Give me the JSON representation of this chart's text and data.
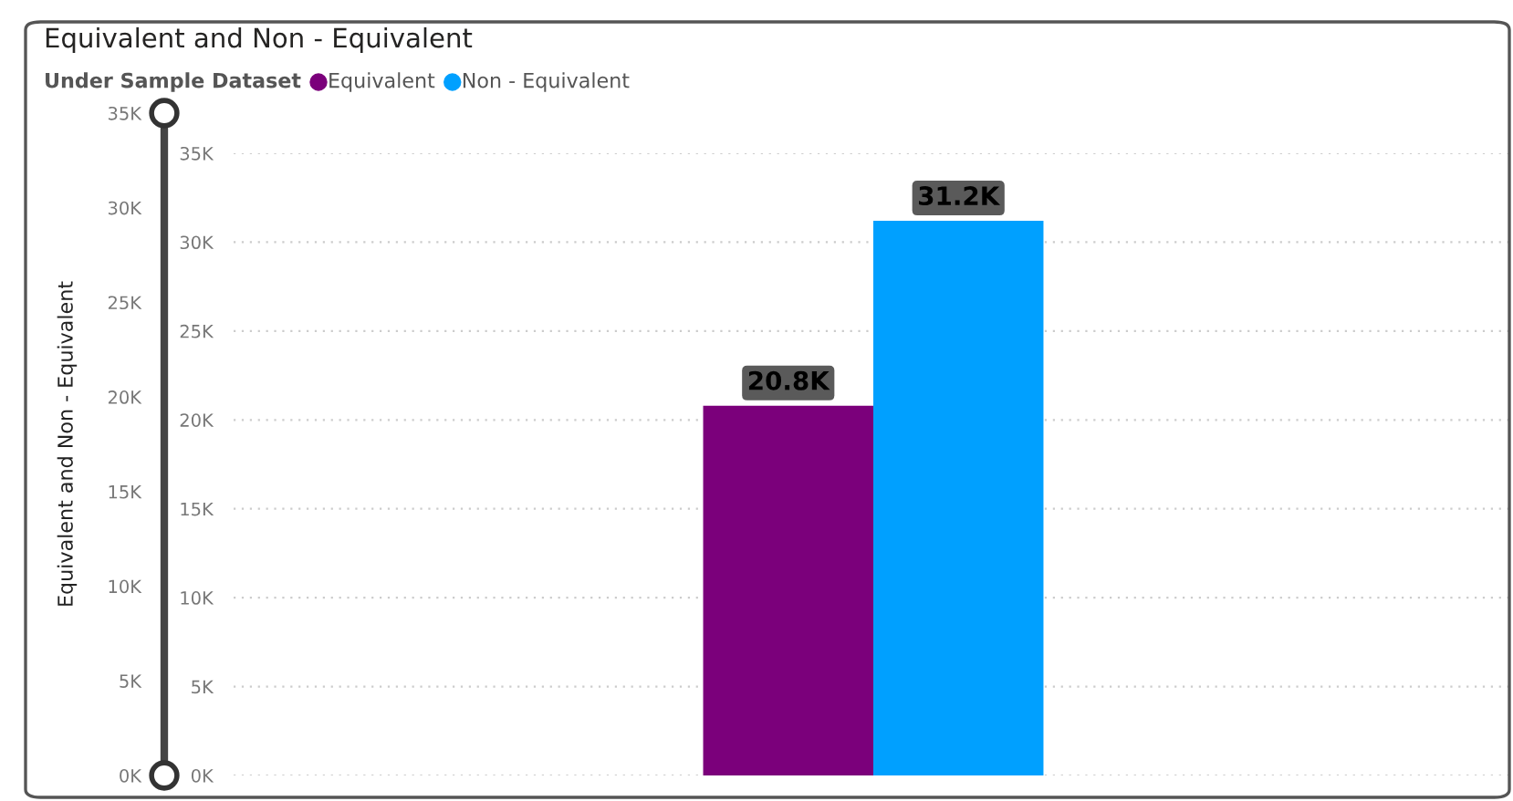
{
  "chart_data": {
    "type": "bar",
    "title": "Equivalent and Non - Equivalent",
    "y2label": "Equivalent and Non - Equivalent",
    "legend_title": "Under Sample Dataset",
    "categories": [
      null
    ],
    "series": [
      {
        "name": "Equivalent",
        "color": "#7b007b",
        "values": [
          20800
        ],
        "value_labels": [
          "20.8K"
        ]
      },
      {
        "name": "Non - Equivalent",
        "color": "#00a0ff",
        "values": [
          31200
        ],
        "value_labels": [
          "31.2K"
        ]
      }
    ],
    "ylim": [
      0,
      35000
    ],
    "yticks": [
      {
        "value": 0,
        "label": "0K"
      },
      {
        "value": 5000,
        "label": "5K"
      },
      {
        "value": 10000,
        "label": "10K"
      },
      {
        "value": 15000,
        "label": "15K"
      },
      {
        "value": 20000,
        "label": "20K"
      },
      {
        "value": 25000,
        "label": "25K"
      },
      {
        "value": 30000,
        "label": "30K"
      },
      {
        "value": 35000,
        "label": "35K"
      }
    ],
    "y2lim": [
      0,
      35000
    ],
    "y2ticks": [
      {
        "value": 0,
        "label": "0K"
      },
      {
        "value": 5000,
        "label": "5K"
      },
      {
        "value": 10000,
        "label": "10K"
      },
      {
        "value": 15000,
        "label": "15K"
      },
      {
        "value": 20000,
        "label": "20K"
      },
      {
        "value": 25000,
        "label": "25K"
      },
      {
        "value": 30000,
        "label": "30K"
      },
      {
        "value": 35000,
        "label": "35K"
      }
    ],
    "grid": "y",
    "legend": "top left"
  }
}
